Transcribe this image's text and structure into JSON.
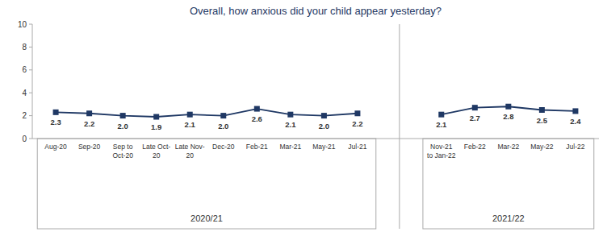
{
  "chart_data": {
    "type": "line",
    "title": "Overall, how anxious did your child appear yesterday?",
    "categories": [
      "Aug-20",
      "Sep-20",
      "Sep to\nOct-20",
      "Late Oct-\n20",
      "Late Nov-\n20",
      "Dec-20",
      "Feb-21",
      "Mar-21",
      "May-21",
      "Jul-21",
      "Nov-21\nto Jan-22",
      "Feb-22",
      "Mar-22",
      "May-22",
      "Jul-22"
    ],
    "series": [
      {
        "name": "2020/21",
        "color": "#1F3864",
        "marker": "square",
        "values": [
          2.3,
          2.2,
          2.0,
          1.9,
          2.1,
          2.0,
          2.6,
          2.1,
          2.0,
          2.2,
          null,
          null,
          null,
          null,
          null
        ],
        "value_labels": [
          "2.3",
          "2.2",
          "2.0",
          "1.9",
          "2.1",
          "2.0",
          "2.6",
          "2.1",
          "2.0",
          "2.2",
          null,
          null,
          null,
          null,
          null
        ]
      },
      {
        "name": "2021/22",
        "color": "#1F3864",
        "marker": "square",
        "values": [
          null,
          null,
          null,
          null,
          null,
          null,
          null,
          null,
          null,
          null,
          2.1,
          2.7,
          2.8,
          2.5,
          2.4
        ],
        "value_labels": [
          null,
          null,
          null,
          null,
          null,
          null,
          null,
          null,
          null,
          null,
          "2.1",
          "2.7",
          "2.8",
          "2.5",
          "2.4"
        ]
      }
    ],
    "ylim": [
      0,
      10
    ],
    "yticks": [
      0,
      2,
      4,
      6,
      8,
      10
    ],
    "data_labels": true,
    "grid": false
  }
}
